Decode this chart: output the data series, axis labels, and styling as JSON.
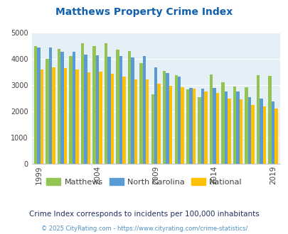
{
  "title": "Matthews Property Crime Index",
  "years": [
    1999,
    2000,
    2001,
    2002,
    2003,
    2004,
    2005,
    2006,
    2007,
    2008,
    2009,
    2010,
    2011,
    2012,
    2013,
    2014,
    2015,
    2016,
    2017,
    2018,
    2019
  ],
  "matthews": [
    4500,
    4000,
    4390,
    4100,
    4600,
    4500,
    4600,
    4350,
    4300,
    3850,
    2640,
    3540,
    3380,
    2840,
    2530,
    3420,
    3120,
    2960,
    2920,
    3370,
    3350
  ],
  "nc": [
    4430,
    4450,
    4270,
    4270,
    4160,
    4130,
    4080,
    4120,
    4060,
    4110,
    3680,
    3470,
    3330,
    2890,
    2880,
    2900,
    2770,
    2750,
    2540,
    2500,
    2380
  ],
  "national": [
    3610,
    3670,
    3640,
    3600,
    3500,
    3510,
    3440,
    3340,
    3230,
    3210,
    3060,
    2970,
    2920,
    2870,
    2750,
    2700,
    2490,
    2460,
    2250,
    2200,
    2120
  ],
  "colors": {
    "matthews": "#92c353",
    "nc": "#5b9bd5",
    "national": "#ffc000",
    "background": "#e4f0f6",
    "title": "#1060b0",
    "subtitle": "#203060",
    "watermark": "#5090c0"
  },
  "ylim": [
    0,
    5000
  ],
  "yticks": [
    0,
    1000,
    2000,
    3000,
    4000,
    5000
  ],
  "tick_years": [
    1999,
    2004,
    2009,
    2014,
    2019
  ],
  "legend_labels": [
    "Matthews",
    "North Carolina",
    "National"
  ],
  "subtitle": "Crime Index corresponds to incidents per 100,000 inhabitants",
  "watermark": "© 2025 CityRating.com - https://www.cityrating.com/crime-statistics/"
}
